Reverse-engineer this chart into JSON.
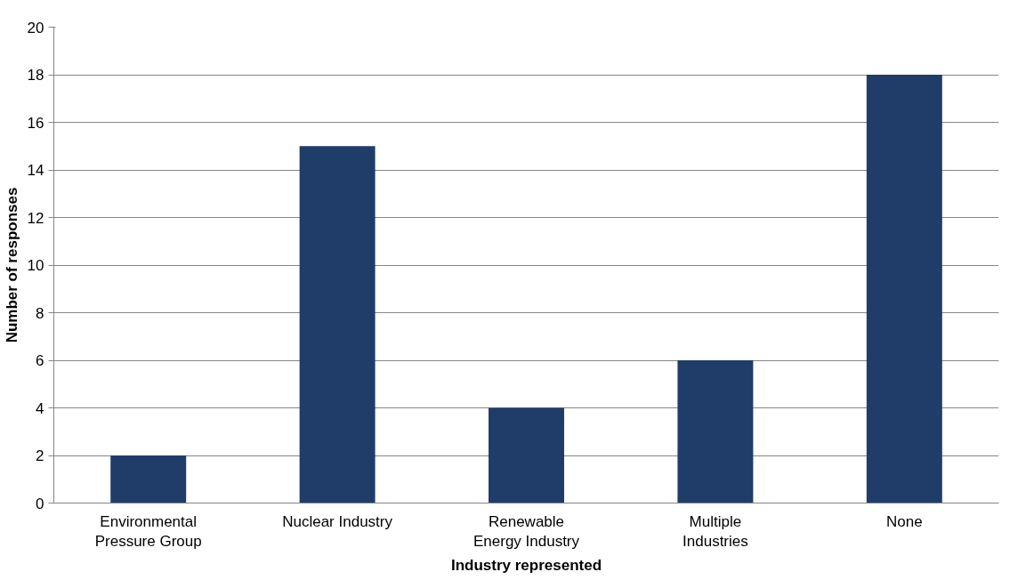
{
  "chart_data": {
    "type": "bar",
    "xlabel": "Industry represented",
    "ylabel": "Number of responses",
    "categories": [
      "Environmental Pressure Group",
      "Nuclear Industry",
      "Renewable Energy Industry",
      "Multiple Industries",
      "None"
    ],
    "values": [
      2,
      15,
      4,
      6,
      18
    ],
    "color": "#1f3d68",
    "ylim": [
      0,
      20
    ],
    "yticks": [
      0,
      2,
      4,
      6,
      8,
      10,
      12,
      14,
      16,
      18,
      20
    ],
    "grid": "y"
  }
}
